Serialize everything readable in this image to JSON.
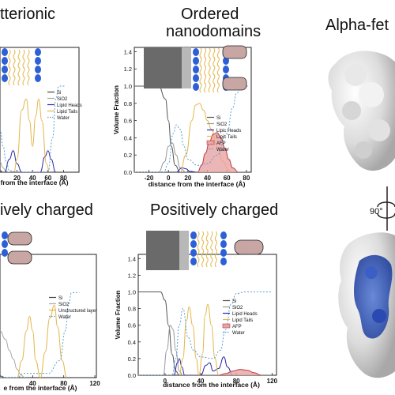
{
  "titles": {
    "tl": "tterionic",
    "tm_line1": "Ordered",
    "tm_line2": "nanodomains",
    "tr": "Alpha-fet",
    "bl": "ively charged",
    "bm": "Positively charged",
    "rotation": "90°"
  },
  "chart_data": [
    {
      "id": "tl",
      "type": "line",
      "xlabel": "e from the interface (Å)",
      "ylabel": "",
      "xticks": [
        "20",
        "40",
        "60",
        "80"
      ],
      "xlim": [
        -2,
        100
      ],
      "ylim": [
        0,
        1.45
      ],
      "legend": [
        "Si",
        "SiO2",
        "Lipid Heads",
        "Lipid Tails",
        "Water"
      ],
      "legend_position": "right-middle",
      "series": [
        {
          "name": "Si",
          "color": "#444444",
          "dash": "",
          "points": [
            [
              -2,
              0.02
            ],
            [
              2,
              0.0
            ],
            [
              10,
              0.0
            ]
          ]
        },
        {
          "name": "SiO2",
          "color": "#aaaaaa",
          "dash": "",
          "points": [
            [
              -2,
              0.12
            ],
            [
              2,
              0.05
            ],
            [
              6,
              0.01
            ],
            [
              10,
              0.0
            ]
          ]
        },
        {
          "name": "Lipid Heads",
          "color": "#2a2aa8",
          "dash": "",
          "points": [
            [
              4,
              0.0
            ],
            [
              10,
              0.15
            ],
            [
              15,
              0.25
            ],
            [
              20,
              0.1
            ],
            [
              26,
              0.0
            ],
            [
              50,
              0.0
            ],
            [
              56,
              0.18
            ],
            [
              60,
              0.25
            ],
            [
              64,
              0.15
            ],
            [
              70,
              0.0
            ]
          ]
        },
        {
          "name": "Lipid Tails",
          "color": "#e3b64a",
          "dash": "",
          "points": [
            [
              16,
              0.0
            ],
            [
              20,
              0.15
            ],
            [
              26,
              0.72
            ],
            [
              32,
              0.85
            ],
            [
              36,
              0.6
            ],
            [
              40,
              0.3
            ],
            [
              44,
              0.65
            ],
            [
              48,
              0.85
            ],
            [
              52,
              0.6
            ],
            [
              58,
              0.1
            ],
            [
              62,
              0.0
            ]
          ]
        },
        {
          "name": "Water",
          "color": "#5a9fd4",
          "dash": "2,2",
          "points": [
            [
              -2,
              0.5
            ],
            [
              2,
              0.3
            ],
            [
              6,
              0.12
            ],
            [
              10,
              0.02
            ],
            [
              20,
              0.0
            ],
            [
              60,
              0.0
            ],
            [
              66,
              0.4
            ],
            [
              70,
              0.85
            ],
            [
              74,
              1.0
            ],
            [
              82,
              1.0
            ]
          ]
        }
      ]
    },
    {
      "id": "tm",
      "type": "area",
      "xlabel": "distance from the interface (Å)",
      "ylabel": "Volume Fraction",
      "xticks": [
        "-20",
        "0",
        "20",
        "40",
        "60",
        "80"
      ],
      "yticks": [
        "0.0",
        "0.2",
        "0.4",
        "0.6",
        "0.8",
        "1.0",
        "1.2",
        "1.4"
      ],
      "xlim": [
        -35,
        85
      ],
      "ylim": [
        0,
        1.45
      ],
      "legend": [
        "Si",
        "SiO2",
        "Lipic Heads",
        "Lipic Tails",
        "AFP",
        "Water"
      ],
      "legend_position": "right-middle",
      "series": [
        {
          "name": "Si",
          "color": "#555555",
          "dash": "",
          "fill": "",
          "points": [
            [
              -35,
              1.0
            ],
            [
              -10,
              1.0
            ],
            [
              -3,
              0.85
            ],
            [
              0,
              0.6
            ],
            [
              3,
              0.3
            ],
            [
              7,
              0.08
            ],
            [
              12,
              0.0
            ],
            [
              80,
              0.0
            ]
          ]
        },
        {
          "name": "SiO2",
          "color": "#999999",
          "dash": "",
          "fill": "",
          "points": [
            [
              -10,
              0.0
            ],
            [
              -4,
              0.12
            ],
            [
              0,
              0.3
            ],
            [
              4,
              0.34
            ],
            [
              8,
              0.2
            ],
            [
              12,
              0.05
            ],
            [
              18,
              0.0
            ]
          ]
        },
        {
          "name": "Lipic Heads",
          "color": "#2a2aa8",
          "dash": "",
          "fill": "",
          "points": [
            [
              8,
              0.0
            ],
            [
              14,
              0.05
            ],
            [
              18,
              0.04
            ],
            [
              22,
              0.01
            ],
            [
              30,
              0.0
            ]
          ]
        },
        {
          "name": "Lipic Tails",
          "color": "#e3b64a",
          "dash": "",
          "fill": "",
          "points": [
            [
              12,
              0.0
            ],
            [
              18,
              0.2
            ],
            [
              24,
              0.6
            ],
            [
              28,
              0.78
            ],
            [
              32,
              0.8
            ],
            [
              36,
              0.72
            ],
            [
              40,
              0.6
            ],
            [
              44,
              0.5
            ],
            [
              50,
              0.3
            ],
            [
              56,
              0.12
            ],
            [
              62,
              0.02
            ],
            [
              66,
              0.0
            ]
          ]
        },
        {
          "name": "AFP",
          "color": "#c23b3b",
          "dash": "",
          "fill": "#e8a4a4",
          "points": [
            [
              30,
              0.0
            ],
            [
              34,
              0.08
            ],
            [
              38,
              0.22
            ],
            [
              42,
              0.35
            ],
            [
              46,
              0.44
            ],
            [
              50,
              0.46
            ],
            [
              54,
              0.4
            ],
            [
              58,
              0.28
            ],
            [
              62,
              0.15
            ],
            [
              66,
              0.05
            ],
            [
              72,
              0.0
            ]
          ]
        },
        {
          "name": "Water",
          "color": "#5a9fd4",
          "dash": "2,2",
          "fill": "",
          "points": [
            [
              -35,
              0.0
            ],
            [
              -5,
              0.0
            ],
            [
              0,
              0.1
            ],
            [
              5,
              0.45
            ],
            [
              8,
              0.55
            ],
            [
              12,
              0.5
            ],
            [
              16,
              0.3
            ],
            [
              20,
              0.15
            ],
            [
              30,
              0.08
            ],
            [
              40,
              0.1
            ],
            [
              50,
              0.2
            ],
            [
              60,
              0.45
            ],
            [
              66,
              0.75
            ],
            [
              70,
              0.92
            ],
            [
              76,
              1.0
            ],
            [
              82,
              1.0
            ]
          ]
        }
      ]
    },
    {
      "id": "bl",
      "type": "line",
      "xlabel": "e from the interface (Å)",
      "ylabel": "",
      "xticks": [
        "40",
        "80",
        "120"
      ],
      "xlim": [
        -2,
        122
      ],
      "ylim": [
        0,
        1.45
      ],
      "legend": [
        "Si",
        "SiO2",
        "Unstructured layer",
        "Water"
      ],
      "legend_position": "right-middle",
      "series": [
        {
          "name": "Si",
          "color": "#444444",
          "dash": "",
          "points": [
            [
              -2,
              0.02
            ],
            [
              5,
              0.0
            ]
          ]
        },
        {
          "name": "SiO2",
          "color": "#aaaaaa",
          "dash": "",
          "points": [
            [
              -2,
              0.55
            ],
            [
              5,
              0.45
            ],
            [
              10,
              0.32
            ],
            [
              15,
              0.22
            ],
            [
              20,
              0.1
            ],
            [
              25,
              0.03
            ],
            [
              30,
              0.0
            ]
          ]
        },
        {
          "name": "Unstructured layer",
          "color": "#e3b64a",
          "dash": "",
          "points": [
            [
              20,
              0.0
            ],
            [
              26,
              0.2
            ],
            [
              32,
              0.55
            ],
            [
              36,
              0.72
            ],
            [
              40,
              0.55
            ],
            [
              44,
              0.2
            ],
            [
              50,
              0.0
            ],
            [
              56,
              0.3
            ],
            [
              62,
              0.7
            ],
            [
              68,
              0.85
            ],
            [
              72,
              0.6
            ],
            [
              78,
              0.2
            ],
            [
              84,
              0.0
            ]
          ]
        },
        {
          "name": "Water",
          "color": "#5a9fd4",
          "dash": "2,2",
          "points": [
            [
              -2,
              0.0
            ],
            [
              20,
              0.0
            ],
            [
              28,
              0.05
            ],
            [
              60,
              0.05
            ],
            [
              75,
              0.2
            ],
            [
              82,
              0.55
            ],
            [
              86,
              0.85
            ],
            [
              90,
              1.0
            ],
            [
              100,
              1.0
            ]
          ]
        }
      ]
    },
    {
      "id": "bm",
      "type": "area",
      "xlabel": "distance from the interface (Å)",
      "ylabel": "Volume Fraction",
      "xticks": [
        "0",
        "40",
        "80",
        "120"
      ],
      "yticks": [
        "0.0",
        "0.2",
        "0.4",
        "0.6",
        "0.8",
        "1.0",
        "1.2",
        "1.4"
      ],
      "xlim": [
        -30,
        125
      ],
      "ylim": [
        0,
        1.45
      ],
      "legend": [
        "Si",
        "SiO2",
        "Lipid Heads",
        "Lipid Tails",
        "AFP",
        "Water"
      ],
      "legend_position": "right-middle",
      "series": [
        {
          "name": "Si",
          "color": "#555555",
          "dash": "",
          "fill": "",
          "points": [
            [
              -30,
              1.0
            ],
            [
              -5,
              1.0
            ],
            [
              0,
              0.9
            ],
            [
              4,
              0.6
            ],
            [
              8,
              0.25
            ],
            [
              12,
              0.05
            ],
            [
              16,
              0.0
            ],
            [
              120,
              0.0
            ]
          ]
        },
        {
          "name": "SiO2",
          "color": "#999999",
          "dash": "",
          "fill": "",
          "points": [
            [
              -2,
              0.0
            ],
            [
              2,
              0.3
            ],
            [
              6,
              0.6
            ],
            [
              9,
              0.55
            ],
            [
              12,
              0.3
            ],
            [
              16,
              0.05
            ],
            [
              20,
              0.0
            ]
          ]
        },
        {
          "name": "Lipid Heads",
          "color": "#2a2aa8",
          "dash": "",
          "fill": "",
          "points": [
            [
              10,
              0.0
            ],
            [
              14,
              0.15
            ],
            [
              16,
              0.2
            ],
            [
              19,
              0.1
            ],
            [
              22,
              0.0
            ],
            [
              40,
              0.0
            ],
            [
              46,
              0.12
            ],
            [
              50,
              0.15
            ],
            [
              54,
              0.05
            ],
            [
              60,
              0.08
            ],
            [
              66,
              0.22
            ],
            [
              70,
              0.1
            ],
            [
              76,
              0.0
            ]
          ]
        },
        {
          "name": "Lipid Tails",
          "color": "#e3b64a",
          "dash": "",
          "fill": "",
          "points": [
            [
              16,
              0.0
            ],
            [
              20,
              0.2
            ],
            [
              24,
              0.65
            ],
            [
              27,
              0.82
            ],
            [
              31,
              0.6
            ],
            [
              35,
              0.2
            ],
            [
              38,
              0.0
            ],
            [
              42,
              0.25
            ],
            [
              45,
              0.72
            ],
            [
              48,
              0.85
            ],
            [
              52,
              0.6
            ],
            [
              56,
              0.2
            ],
            [
              60,
              0.0
            ]
          ]
        },
        {
          "name": "AFP",
          "color": "#c23b3b",
          "dash": "",
          "fill": "#e8a4a4",
          "points": [
            [
              60,
              0.0
            ],
            [
              68,
              0.02
            ],
            [
              76,
              0.05
            ],
            [
              84,
              0.07
            ],
            [
              92,
              0.06
            ],
            [
              100,
              0.03
            ],
            [
              108,
              0.0
            ]
          ]
        },
        {
          "name": "Water",
          "color": "#5a9fd4",
          "dash": "2,2",
          "fill": "",
          "points": [
            [
              -30,
              0.0
            ],
            [
              8,
              0.0
            ],
            [
              12,
              0.2
            ],
            [
              16,
              0.6
            ],
            [
              20,
              0.8
            ],
            [
              26,
              0.45
            ],
            [
              32,
              0.3
            ],
            [
              40,
              0.22
            ],
            [
              54,
              0.2
            ],
            [
              62,
              0.3
            ],
            [
              68,
              0.55
            ],
            [
              74,
              0.85
            ],
            [
              80,
              0.98
            ],
            [
              90,
              1.0
            ],
            [
              120,
              1.0
            ]
          ]
        }
      ]
    }
  ]
}
